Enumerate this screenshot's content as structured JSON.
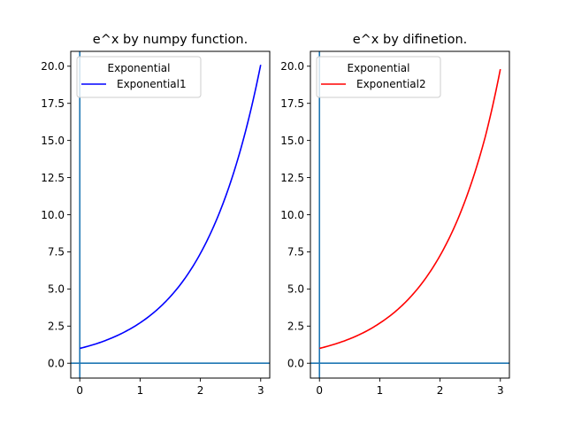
{
  "chart_data": [
    {
      "type": "line",
      "title": "e^x by numpy function.",
      "xlim": [
        -0.15,
        3.15
      ],
      "ylim": [
        -1.0,
        21.0
      ],
      "xticks": [
        0,
        1,
        2,
        3
      ],
      "xtick_labels": [
        "0",
        "1",
        "2",
        "3"
      ],
      "yticks": [
        0,
        2.5,
        5,
        7.5,
        10,
        12.5,
        15,
        17.5,
        20
      ],
      "ytick_labels": [
        "0.0",
        "2.5",
        "5.0",
        "7.5",
        "10.0",
        "12.5",
        "15.0",
        "17.5",
        "20.0"
      ],
      "grid": false,
      "axis_lines": {
        "x0": 0,
        "y0": 0,
        "color": "#1f77b4"
      },
      "legend": {
        "title": "Exponential",
        "placement": "top-left"
      },
      "series": [
        {
          "name": "Exponential1",
          "color": "#0000ff",
          "x": [
            0,
            0.25,
            0.5,
            0.75,
            1,
            1.25,
            1.5,
            1.75,
            2,
            2.25,
            2.5,
            2.75,
            3
          ],
          "y": [
            1.0,
            1.28,
            1.65,
            2.12,
            2.72,
            3.49,
            4.48,
            5.75,
            7.39,
            9.49,
            12.18,
            15.64,
            20.09
          ]
        }
      ]
    },
    {
      "type": "line",
      "title": "e^x by difinetion.",
      "xlim": [
        -0.15,
        3.15
      ],
      "ylim": [
        -1.0,
        21.0
      ],
      "xticks": [
        0,
        1,
        2,
        3
      ],
      "xtick_labels": [
        "0",
        "1",
        "2",
        "3"
      ],
      "yticks": [
        0,
        2.5,
        5,
        7.5,
        10,
        12.5,
        15,
        17.5,
        20
      ],
      "ytick_labels": [
        "0.0",
        "2.5",
        "5.0",
        "7.5",
        "10.0",
        "12.5",
        "15.0",
        "17.5",
        "20.0"
      ],
      "grid": false,
      "axis_lines": {
        "x0": 0,
        "y0": 0,
        "color": "#1f77b4"
      },
      "legend": {
        "title": "Exponential",
        "placement": "top-left"
      },
      "series": [
        {
          "name": "Exponential2",
          "color": "#ff0000",
          "x": [
            0,
            0.25,
            0.5,
            0.75,
            1,
            1.25,
            1.5,
            1.75,
            2,
            2.25,
            2.5,
            2.75,
            3
          ],
          "y": [
            1.0,
            1.28,
            1.64,
            2.1,
            2.7,
            3.45,
            4.42,
            5.66,
            7.25,
            9.28,
            11.9,
            15.25,
            19.8
          ]
        }
      ]
    }
  ]
}
